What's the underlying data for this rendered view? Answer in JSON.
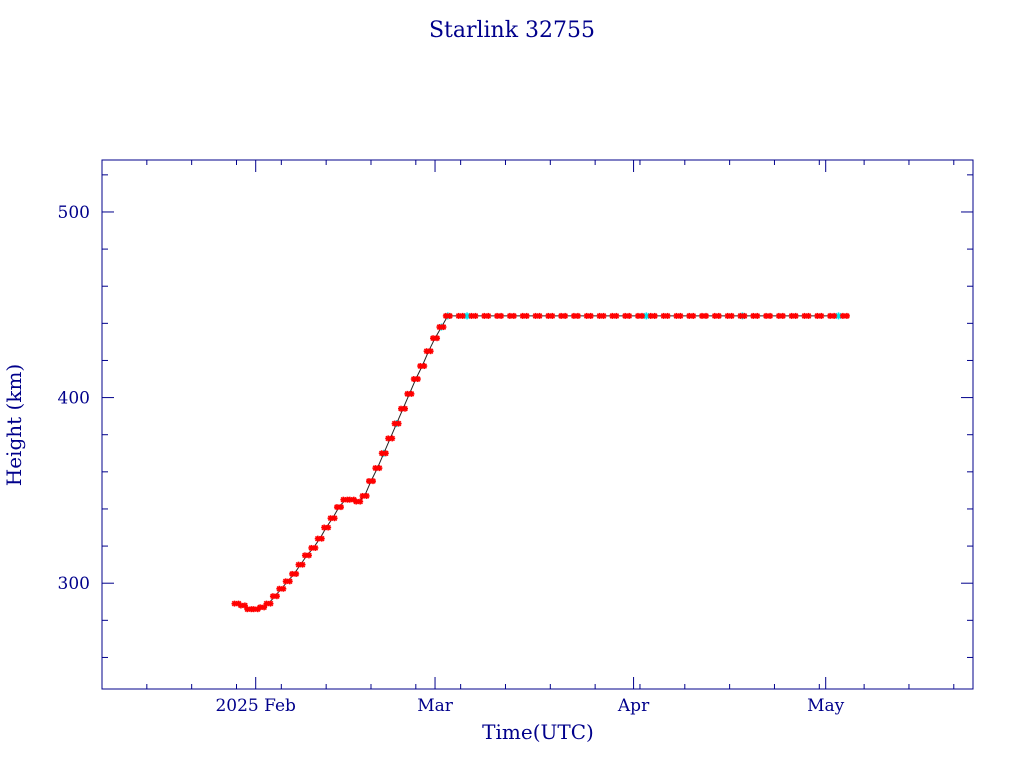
{
  "chart_data": {
    "type": "scatter",
    "title": "Starlink 32755",
    "xlabel": "Time(UTC)",
    "ylabel": "Height (km)",
    "x_range": [
      "2025-01-08",
      "2025-05-24"
    ],
    "ylim": [
      243,
      528
    ],
    "x_tick_labels": [
      {
        "date": "2025-02-01",
        "label": "2025 Feb"
      },
      {
        "date": "2025-03-01",
        "label": "Mar"
      },
      {
        "date": "2025-04-01",
        "label": "Apr"
      },
      {
        "date": "2025-05-01",
        "label": "May"
      }
    ],
    "y_ticks": [
      300,
      400,
      500
    ],
    "grid": false,
    "colors": {
      "axes": "#00008b",
      "points": "#ff0000",
      "interpolated": "#00e5ee",
      "line": "#222222"
    },
    "points": [
      {
        "x": "2025-01-29",
        "y": 289
      },
      {
        "x": "2025-01-30",
        "y": 288
      },
      {
        "x": "2025-01-31",
        "y": 286
      },
      {
        "x": "2025-02-01",
        "y": 286
      },
      {
        "x": "2025-02-02",
        "y": 287
      },
      {
        "x": "2025-02-03",
        "y": 289
      },
      {
        "x": "2025-02-04",
        "y": 293
      },
      {
        "x": "2025-02-05",
        "y": 297
      },
      {
        "x": "2025-02-06",
        "y": 301
      },
      {
        "x": "2025-02-07",
        "y": 305
      },
      {
        "x": "2025-02-08",
        "y": 310
      },
      {
        "x": "2025-02-09",
        "y": 315
      },
      {
        "x": "2025-02-10",
        "y": 319
      },
      {
        "x": "2025-02-11",
        "y": 324
      },
      {
        "x": "2025-02-12",
        "y": 330
      },
      {
        "x": "2025-02-13",
        "y": 335
      },
      {
        "x": "2025-02-14",
        "y": 341
      },
      {
        "x": "2025-02-15",
        "y": 345
      },
      {
        "x": "2025-02-16",
        "y": 345
      },
      {
        "x": "2025-02-17",
        "y": 344
      },
      {
        "x": "2025-02-18",
        "y": 347
      },
      {
        "x": "2025-02-19",
        "y": 355
      },
      {
        "x": "2025-02-20",
        "y": 362
      },
      {
        "x": "2025-02-21",
        "y": 370
      },
      {
        "x": "2025-02-22",
        "y": 378
      },
      {
        "x": "2025-02-23",
        "y": 386
      },
      {
        "x": "2025-02-24",
        "y": 394
      },
      {
        "x": "2025-02-25",
        "y": 402
      },
      {
        "x": "2025-02-26",
        "y": 410
      },
      {
        "x": "2025-02-27",
        "y": 417
      },
      {
        "x": "2025-02-28",
        "y": 425
      },
      {
        "x": "2025-03-01",
        "y": 432
      },
      {
        "x": "2025-03-02",
        "y": 438
      },
      {
        "x": "2025-03-03",
        "y": 444
      },
      {
        "x": "2025-03-05",
        "y": 444
      },
      {
        "x": "2025-03-07",
        "y": 444
      },
      {
        "x": "2025-03-09",
        "y": 444
      },
      {
        "x": "2025-03-11",
        "y": 444
      },
      {
        "x": "2025-03-13",
        "y": 444
      },
      {
        "x": "2025-03-15",
        "y": 444
      },
      {
        "x": "2025-03-17",
        "y": 444
      },
      {
        "x": "2025-03-19",
        "y": 444
      },
      {
        "x": "2025-03-21",
        "y": 444
      },
      {
        "x": "2025-03-23",
        "y": 444
      },
      {
        "x": "2025-03-25",
        "y": 444
      },
      {
        "x": "2025-03-27",
        "y": 444
      },
      {
        "x": "2025-03-29",
        "y": 444
      },
      {
        "x": "2025-03-31",
        "y": 444
      },
      {
        "x": "2025-04-02",
        "y": 444
      },
      {
        "x": "2025-04-04",
        "y": 444
      },
      {
        "x": "2025-04-06",
        "y": 444
      },
      {
        "x": "2025-04-08",
        "y": 444
      },
      {
        "x": "2025-04-10",
        "y": 444
      },
      {
        "x": "2025-04-12",
        "y": 444
      },
      {
        "x": "2025-04-14",
        "y": 444
      },
      {
        "x": "2025-04-16",
        "y": 444
      },
      {
        "x": "2025-04-18",
        "y": 444
      },
      {
        "x": "2025-04-20",
        "y": 444
      },
      {
        "x": "2025-04-22",
        "y": 444
      },
      {
        "x": "2025-04-24",
        "y": 444
      },
      {
        "x": "2025-04-26",
        "y": 444
      },
      {
        "x": "2025-04-28",
        "y": 444
      },
      {
        "x": "2025-04-30",
        "y": 444
      },
      {
        "x": "2025-05-02",
        "y": 444
      },
      {
        "x": "2025-05-04",
        "y": 444
      }
    ],
    "interpolated_points": [
      {
        "x": "2025-02-21",
        "y": 370
      },
      {
        "x": "2025-02-23",
        "y": 386
      },
      {
        "x": "2025-03-02",
        "y": 438
      },
      {
        "x": "2025-03-03",
        "y": 444
      },
      {
        "x": "2025-03-06",
        "y": 444
      },
      {
        "x": "2025-04-03",
        "y": 444
      },
      {
        "x": "2025-04-18",
        "y": 444
      },
      {
        "x": "2025-05-03",
        "y": 444
      }
    ]
  }
}
